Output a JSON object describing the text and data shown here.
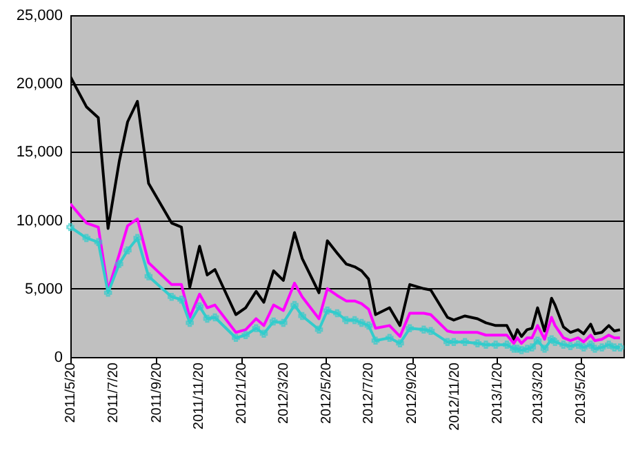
{
  "chart_data": {
    "type": "line",
    "x": [
      "2011-05-20",
      "2011-06-12",
      "2011-06-29",
      "2011-07-13",
      "2011-07-29",
      "2011-08-10",
      "2011-08-24",
      "2011-09-09",
      "2011-10-12",
      "2011-10-26",
      "2011-11-07",
      "2011-11-21",
      "2011-12-02",
      "2011-12-13",
      "2012-01-12",
      "2012-01-26",
      "2012-02-10",
      "2012-02-21",
      "2012-03-06",
      "2012-03-20",
      "2012-04-05",
      "2012-04-16",
      "2012-05-10",
      "2012-05-22",
      "2012-06-05",
      "2012-06-18",
      "2012-06-30",
      "2012-07-10",
      "2012-07-20",
      "2012-07-30",
      "2012-08-19",
      "2012-09-03",
      "2012-09-17",
      "2012-10-07",
      "2012-10-17",
      "2012-11-10",
      "2012-11-19",
      "2012-12-05",
      "2012-12-23",
      "2013-01-04",
      "2013-01-18",
      "2013-02-03",
      "2013-02-13",
      "2013-02-18",
      "2013-02-24",
      "2013-03-04",
      "2013-03-11",
      "2013-03-19",
      "2013-03-29",
      "2013-04-08",
      "2013-04-13",
      "2013-04-25",
      "2013-05-05",
      "2013-05-16",
      "2013-05-24",
      "2013-06-03",
      "2013-06-09",
      "2013-06-19",
      "2013-06-29",
      "2013-07-07",
      "2013-07-15"
    ],
    "series": [
      {
        "color": "#000000",
        "values": [
          20500,
          18300,
          17500,
          9400,
          14300,
          17200,
          18700,
          12700,
          9800,
          9500,
          5100,
          8100,
          6000,
          6400,
          3100,
          3600,
          4800,
          4000,
          6300,
          5600,
          9100,
          7200,
          4700,
          8500,
          7600,
          6800,
          6600,
          6300,
          5700,
          3100,
          3600,
          2300,
          5300,
          5000,
          4900,
          2900,
          2700,
          3000,
          2800,
          2500,
          2300,
          2300,
          1300,
          2000,
          1500,
          2000,
          2100,
          3600,
          1900,
          4300,
          3800,
          2200,
          1800,
          2000,
          1700,
          2400,
          1700,
          1800,
          2300,
          1900,
          2000
        ]
      },
      {
        "color": "#ff00ff",
        "values": [
          11200,
          9800,
          9500,
          4900,
          7500,
          9600,
          10100,
          6900,
          5300,
          5300,
          2900,
          4600,
          3600,
          3800,
          1800,
          2000,
          2800,
          2300,
          3800,
          3400,
          5400,
          4400,
          2800,
          5000,
          4500,
          4100,
          4100,
          3900,
          3500,
          2100,
          2300,
          1500,
          3200,
          3200,
          3100,
          1900,
          1800,
          1800,
          1800,
          1600,
          1600,
          1600,
          1000,
          1400,
          1000,
          1400,
          1400,
          2300,
          1300,
          2900,
          2300,
          1400,
          1200,
          1400,
          1100,
          1600,
          1200,
          1300,
          1600,
          1400,
          1400
        ]
      },
      {
        "color": "#33cccc",
        "marker": "cross",
        "values": [
          9500,
          8700,
          8400,
          4700,
          6800,
          7800,
          8700,
          5900,
          4400,
          4200,
          2500,
          3700,
          2800,
          2900,
          1400,
          1600,
          2100,
          1700,
          2600,
          2500,
          3800,
          3000,
          2000,
          3400,
          3200,
          2700,
          2700,
          2500,
          2300,
          1200,
          1400,
          1000,
          2100,
          2000,
          1900,
          1100,
          1100,
          1100,
          1000,
          900,
          900,
          900,
          600,
          600,
          500,
          600,
          700,
          1200,
          600,
          1300,
          1100,
          900,
          800,
          900,
          700,
          900,
          600,
          700,
          900,
          700,
          700
        ]
      }
    ],
    "xlim": [
      "2011-05-20",
      "2013-07-20"
    ],
    "xticks": [
      {
        "value": "2011-05-20",
        "label": "2011/5/20"
      },
      {
        "value": "2011-07-20",
        "label": "2011/7/20"
      },
      {
        "value": "2011-09-20",
        "label": "2011/9/20"
      },
      {
        "value": "2011-11-20",
        "label": "2011/11/20"
      },
      {
        "value": "2012-01-20",
        "label": "2012/1/20"
      },
      {
        "value": "2012-03-20",
        "label": "2012/3/20"
      },
      {
        "value": "2012-05-20",
        "label": "2012/5/20"
      },
      {
        "value": "2012-07-20",
        "label": "2012/7/20"
      },
      {
        "value": "2012-09-20",
        "label": "2012/9/20"
      },
      {
        "value": "2012-11-20",
        "label": "2012/11/20"
      },
      {
        "value": "2013-01-20",
        "label": "2013/1/20"
      },
      {
        "value": "2013-03-20",
        "label": "2013/3/20"
      },
      {
        "value": "2013-05-20",
        "label": "2013/5/20"
      }
    ],
    "ylim": [
      0,
      25000
    ],
    "yticks": [
      0,
      {
        "value": 5000,
        "label": "5,000"
      },
      {
        "value": 10000,
        "label": "10,000"
      },
      {
        "value": 15000,
        "label": "15,000"
      },
      {
        "value": 20000,
        "label": "20,000"
      },
      {
        "value": 25000,
        "label": "25,000"
      }
    ],
    "grid": "y"
  }
}
